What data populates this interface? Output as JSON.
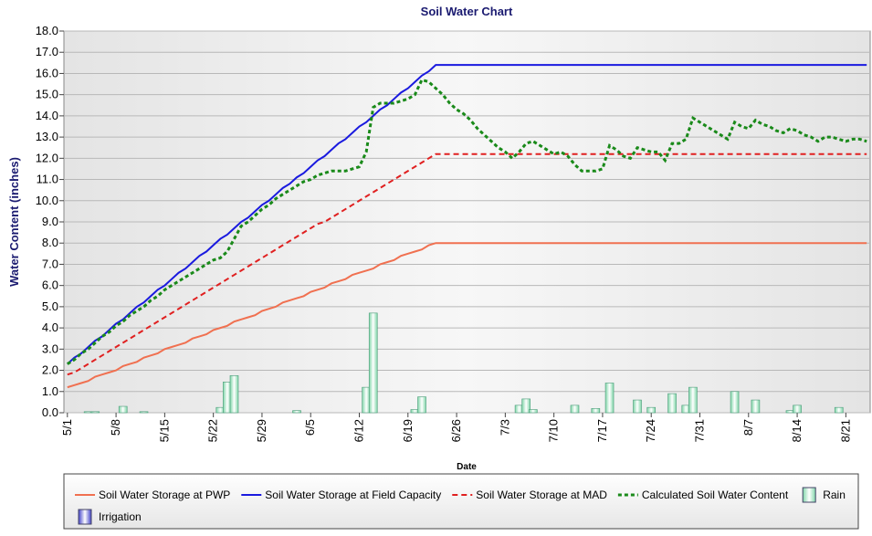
{
  "chart_data": {
    "type": "line",
    "title": "Soil Water Chart",
    "x_label": "Date",
    "y_label": "Water Content (inches)",
    "categories": [
      "5/1",
      null,
      null,
      null,
      null,
      null,
      null,
      "5/8",
      null,
      null,
      null,
      null,
      null,
      null,
      "5/15",
      null,
      null,
      null,
      null,
      null,
      null,
      "5/22",
      null,
      null,
      null,
      null,
      null,
      null,
      "5/29",
      null,
      null,
      null,
      null,
      null,
      null,
      "6/5",
      null,
      null,
      null,
      null,
      null,
      null,
      "6/12",
      null,
      null,
      null,
      null,
      null,
      null,
      "6/19",
      null,
      null,
      null,
      null,
      null,
      null,
      "6/26",
      null,
      null,
      null,
      null,
      null,
      null,
      "7/3",
      null,
      null,
      null,
      null,
      null,
      null,
      "7/10",
      null,
      null,
      null,
      null,
      null,
      null,
      "7/17",
      null,
      null,
      null,
      null,
      null,
      null,
      "7/24",
      null,
      null,
      null,
      null,
      null,
      null,
      "7/31",
      null,
      null,
      null,
      null,
      null,
      null,
      "8/7",
      null,
      null,
      null,
      null,
      null,
      null,
      "8/14",
      null,
      null,
      null,
      null,
      null,
      null,
      "8/21",
      null,
      null,
      null
    ],
    "ylim": [
      0,
      18
    ],
    "yticks": [
      {
        "value": 0,
        "label": "0.0"
      },
      {
        "value": 1,
        "label": "1.0"
      },
      {
        "value": 2,
        "label": "2.0"
      },
      {
        "value": 3,
        "label": "3.0"
      },
      {
        "value": 4,
        "label": "4.0"
      },
      {
        "value": 5,
        "label": "5.0"
      },
      {
        "value": 6,
        "label": "6.0"
      },
      {
        "value": 7,
        "label": "7.0"
      },
      {
        "value": 8,
        "label": "8.0"
      },
      {
        "value": 9,
        "label": "9.0"
      },
      {
        "value": 10,
        "label": "10.0"
      },
      {
        "value": 11,
        "label": "11.0"
      },
      {
        "value": 12,
        "label": "12.0"
      },
      {
        "value": 13,
        "label": "13.0"
      },
      {
        "value": 14,
        "label": "14.0"
      },
      {
        "value": 15,
        "label": "15.0"
      },
      {
        "value": 16,
        "label": "16.0"
      },
      {
        "value": 17,
        "label": "17.0"
      },
      {
        "value": 18,
        "label": "18.0"
      }
    ],
    "grid": true,
    "legend": "bottom",
    "series": [
      {
        "name": "Soil Water Storage at PWP",
        "type": "line",
        "color": "#f07050",
        "dash": "solid",
        "values": [
          1.2,
          1.3,
          1.4,
          1.5,
          1.7,
          1.8,
          1.9,
          2.0,
          2.2,
          2.3,
          2.4,
          2.6,
          2.7,
          2.8,
          3.0,
          3.1,
          3.2,
          3.3,
          3.5,
          3.6,
          3.7,
          3.9,
          4.0,
          4.1,
          4.3,
          4.4,
          4.5,
          4.6,
          4.8,
          4.9,
          5.0,
          5.2,
          5.3,
          5.4,
          5.5,
          5.7,
          5.8,
          5.9,
          6.1,
          6.2,
          6.3,
          6.5,
          6.6,
          6.7,
          6.8,
          7.0,
          7.1,
          7.2,
          7.4,
          7.5,
          7.6,
          7.7,
          7.9,
          8.0,
          8.0,
          8.0,
          8.0,
          8.0,
          8.0,
          8.0,
          8.0,
          8.0,
          8.0,
          8.0,
          8.0,
          8.0,
          8.0,
          8.0,
          8.0,
          8.0,
          8.0,
          8.0,
          8.0,
          8.0,
          8.0,
          8.0,
          8.0,
          8.0,
          8.0,
          8.0,
          8.0,
          8.0,
          8.0,
          8.0,
          8.0,
          8.0,
          8.0,
          8.0,
          8.0,
          8.0,
          8.0,
          8.0,
          8.0,
          8.0,
          8.0,
          8.0,
          8.0,
          8.0,
          8.0,
          8.0,
          8.0,
          8.0,
          8.0,
          8.0,
          8.0,
          8.0,
          8.0,
          8.0,
          8.0,
          8.0,
          8.0,
          8.0,
          8.0,
          8.0,
          8.0,
          8.0
        ]
      },
      {
        "name": "Soil Water Storage at Field Capacity",
        "type": "line",
        "color": "#1a1adf",
        "dash": "solid",
        "values": [
          2.3,
          2.6,
          2.8,
          3.1,
          3.4,
          3.6,
          3.9,
          4.2,
          4.4,
          4.7,
          5.0,
          5.2,
          5.5,
          5.8,
          6.0,
          6.3,
          6.6,
          6.8,
          7.1,
          7.4,
          7.6,
          7.9,
          8.2,
          8.4,
          8.7,
          9.0,
          9.2,
          9.5,
          9.8,
          10.0,
          10.3,
          10.6,
          10.8,
          11.1,
          11.3,
          11.6,
          11.9,
          12.1,
          12.4,
          12.7,
          12.9,
          13.2,
          13.5,
          13.7,
          14.0,
          14.3,
          14.5,
          14.8,
          15.1,
          15.3,
          15.6,
          15.9,
          16.1,
          16.4,
          16.4,
          16.4,
          16.4,
          16.4,
          16.4,
          16.4,
          16.4,
          16.4,
          16.4,
          16.4,
          16.4,
          16.4,
          16.4,
          16.4,
          16.4,
          16.4,
          16.4,
          16.4,
          16.4,
          16.4,
          16.4,
          16.4,
          16.4,
          16.4,
          16.4,
          16.4,
          16.4,
          16.4,
          16.4,
          16.4,
          16.4,
          16.4,
          16.4,
          16.4,
          16.4,
          16.4,
          16.4,
          16.4,
          16.4,
          16.4,
          16.4,
          16.4,
          16.4,
          16.4,
          16.4,
          16.4,
          16.4,
          16.4,
          16.4,
          16.4,
          16.4,
          16.4,
          16.4,
          16.4,
          16.4,
          16.4,
          16.4,
          16.4,
          16.4,
          16.4,
          16.4,
          16.4
        ]
      },
      {
        "name": "Soil Water Storage at MAD",
        "type": "line",
        "color": "#e02020",
        "dash": "dashed",
        "values": [
          1.8,
          1.9,
          2.1,
          2.3,
          2.5,
          2.7,
          2.9,
          3.1,
          3.3,
          3.5,
          3.7,
          3.9,
          4.1,
          4.3,
          4.5,
          4.7,
          4.9,
          5.1,
          5.3,
          5.5,
          5.7,
          5.9,
          6.1,
          6.3,
          6.5,
          6.7,
          6.9,
          7.1,
          7.3,
          7.5,
          7.7,
          7.9,
          8.1,
          8.3,
          8.5,
          8.7,
          8.9,
          9.0,
          9.2,
          9.4,
          9.6,
          9.8,
          10.0,
          10.2,
          10.4,
          10.6,
          10.8,
          11.0,
          11.2,
          11.4,
          11.6,
          11.8,
          12.0,
          12.2,
          12.2,
          12.2,
          12.2,
          12.2,
          12.2,
          12.2,
          12.2,
          12.2,
          12.2,
          12.2,
          12.2,
          12.2,
          12.2,
          12.2,
          12.2,
          12.2,
          12.2,
          12.2,
          12.2,
          12.2,
          12.2,
          12.2,
          12.2,
          12.2,
          12.2,
          12.2,
          12.2,
          12.2,
          12.2,
          12.2,
          12.2,
          12.2,
          12.2,
          12.2,
          12.2,
          12.2,
          12.2,
          12.2,
          12.2,
          12.2,
          12.2,
          12.2,
          12.2,
          12.2,
          12.2,
          12.2,
          12.2,
          12.2,
          12.2,
          12.2,
          12.2,
          12.2,
          12.2,
          12.2,
          12.2,
          12.2,
          12.2,
          12.2,
          12.2,
          12.2,
          12.2,
          12.2
        ]
      },
      {
        "name": "Calculated Soil Water Content",
        "type": "line",
        "color": "#1a8a1a",
        "dash": "dotted",
        "values": [
          2.3,
          2.5,
          2.8,
          3.0,
          3.3,
          3.6,
          3.8,
          4.1,
          4.3,
          4.6,
          4.8,
          5.0,
          5.3,
          5.5,
          5.8,
          6.0,
          6.2,
          6.4,
          6.6,
          6.8,
          7.0,
          7.2,
          7.3,
          7.6,
          8.2,
          8.8,
          9.0,
          9.3,
          9.6,
          9.8,
          10.1,
          10.3,
          10.5,
          10.7,
          10.9,
          11.0,
          11.2,
          11.3,
          11.4,
          11.4,
          11.4,
          11.5,
          11.6,
          12.3,
          14.4,
          14.6,
          14.6,
          14.6,
          14.7,
          14.8,
          15.0,
          15.7,
          15.6,
          15.3,
          15.0,
          14.6,
          14.3,
          14.1,
          13.8,
          13.4,
          13.1,
          12.8,
          12.5,
          12.3,
          12.0,
          12.3,
          12.7,
          12.8,
          12.6,
          12.4,
          12.2,
          12.3,
          12.1,
          11.7,
          11.4,
          11.4,
          11.4,
          11.5,
          12.6,
          12.4,
          12.1,
          12.0,
          12.5,
          12.4,
          12.3,
          12.3,
          11.9,
          12.7,
          12.7,
          12.9,
          13.9,
          13.7,
          13.5,
          13.3,
          13.1,
          12.9,
          13.7,
          13.5,
          13.4,
          13.8,
          13.6,
          13.5,
          13.3,
          13.2,
          13.4,
          13.3,
          13.1,
          13.0,
          12.8,
          13.0,
          13.0,
          12.9,
          12.8,
          12.9,
          12.9,
          12.8
        ]
      },
      {
        "name": "Rain",
        "type": "bar",
        "color": "#7fd6a8",
        "values": [
          null,
          null,
          null,
          0.05,
          0.05,
          null,
          null,
          null,
          0.3,
          null,
          null,
          0.05,
          null,
          null,
          null,
          null,
          null,
          null,
          null,
          null,
          null,
          null,
          0.25,
          1.45,
          1.75,
          null,
          null,
          null,
          null,
          null,
          null,
          null,
          null,
          0.1,
          null,
          null,
          null,
          null,
          null,
          null,
          null,
          null,
          null,
          1.2,
          4.7,
          null,
          null,
          null,
          null,
          null,
          0.15,
          0.75,
          null,
          null,
          null,
          null,
          null,
          null,
          null,
          null,
          null,
          null,
          null,
          null,
          null,
          0.35,
          0.65,
          0.15,
          null,
          null,
          null,
          null,
          null,
          0.35,
          null,
          null,
          0.2,
          null,
          1.4,
          null,
          null,
          null,
          0.6,
          null,
          0.25,
          null,
          null,
          0.9,
          null,
          0.35,
          1.2,
          null,
          null,
          null,
          null,
          null,
          1.0,
          null,
          null,
          0.6,
          null,
          null,
          null,
          null,
          0.1,
          0.35,
          null,
          null,
          null,
          null,
          null,
          0.25,
          null,
          null,
          null,
          null
        ]
      },
      {
        "name": "Irrigation",
        "type": "bar",
        "color": "#4040c8",
        "values": [
          null,
          null,
          null,
          null,
          null,
          null,
          null,
          null,
          null,
          null,
          null,
          null,
          null,
          null,
          null,
          null,
          null,
          null,
          null,
          null,
          null,
          null,
          null,
          null,
          null,
          null,
          null,
          null,
          null,
          null,
          null,
          null,
          null,
          null,
          null,
          null,
          null,
          null,
          null,
          null,
          null,
          null,
          null,
          null,
          null,
          null,
          null,
          null,
          null,
          null,
          null,
          null,
          null,
          null,
          null,
          null,
          null,
          null,
          null,
          null,
          null,
          null,
          null,
          null,
          null,
          null,
          null,
          null,
          null,
          null,
          null,
          null,
          null,
          null,
          null,
          null,
          null,
          null,
          null,
          null,
          null,
          null,
          null,
          null,
          null,
          null,
          null,
          null,
          null,
          null,
          null,
          null,
          null,
          null,
          null,
          null,
          null,
          null,
          null,
          null,
          null,
          null,
          null,
          null,
          null,
          null,
          null,
          null,
          null,
          null,
          null,
          null,
          null,
          null,
          null,
          null
        ]
      }
    ]
  }
}
